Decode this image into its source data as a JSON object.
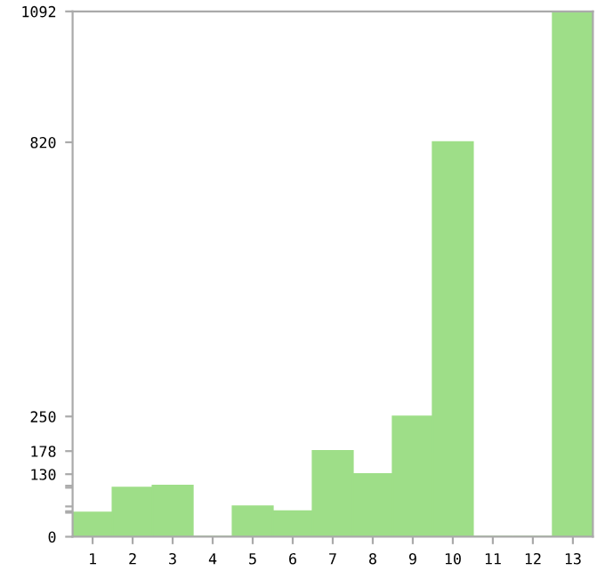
{
  "chart_data": {
    "type": "bar",
    "categories": [
      "1",
      "2",
      "3",
      "4",
      "5",
      "6",
      "7",
      "8",
      "9",
      "10",
      "11",
      "12",
      "13"
    ],
    "values": [
      50,
      102,
      106,
      0,
      63,
      53,
      178,
      130,
      250,
      820,
      0,
      0,
      1092
    ],
    "color": "#9ede88",
    "ylim": [
      0,
      1092
    ],
    "yticks": [
      0,
      {
        "value": 50,
        "label": null
      },
      {
        "value": 53,
        "label": null
      },
      {
        "value": 63,
        "label": null
      },
      {
        "value": 102,
        "label": null
      },
      {
        "value": 106,
        "label": null
      },
      130,
      178,
      250,
      820,
      1092
    ],
    "grid": false
  }
}
